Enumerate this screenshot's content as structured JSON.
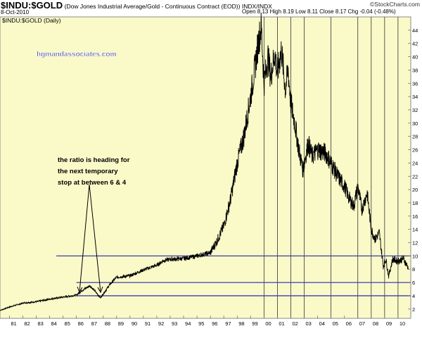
{
  "header": {
    "symbol": "$INDU:$GOLD",
    "description": "(Dow Jones Industrial Average/Gold - Continuous Contract (EOD))",
    "exchange": "INDX/INDX",
    "source": "©StockCharts.com",
    "date": "8-Oct-2010",
    "ohlc": "Open 8.13  High 8.19  Low 8.11  Close 8.17  Chg -0.04 (-0.48%)"
  },
  "chart_data": {
    "type": "line",
    "title": "$INDU:$GOLD (Daily)",
    "site_label": "hgmandassociates.com",
    "annotation": [
      "the ratio is heading for",
      "the next temporary",
      "stop at between 6 & 4"
    ],
    "xlabel": "",
    "ylabel": "",
    "xlim": [
      1980.3,
      2010.95
    ],
    "ylim": [
      0.6,
      46
    ],
    "yscale": "linear",
    "grid": false,
    "x_ticks": [
      "81",
      "82",
      "83",
      "84",
      "85",
      "86",
      "87",
      "88",
      "89",
      "90",
      "91",
      "92",
      "93",
      "94",
      "95",
      "96",
      "97",
      "98",
      "99",
      "00",
      "01",
      "02",
      "03",
      "04",
      "05",
      "06",
      "07",
      "08",
      "09",
      "10"
    ],
    "y_ticks": [
      2,
      4,
      6,
      8,
      10,
      12,
      14,
      16,
      18,
      20,
      22,
      24,
      26,
      28,
      30,
      32,
      34,
      36,
      38,
      40,
      42,
      44
    ],
    "series": [
      {
        "x": [
          1980.3,
          1981,
          1982,
          1983,
          1984,
          1985,
          1986,
          1986.5,
          1987,
          1987.3,
          1987.8,
          1988.5,
          1989,
          1990,
          1991,
          1992,
          1992.5,
          1993,
          1994,
          1995,
          1996,
          1996.5,
          1997,
          1997.5,
          1998,
          1998.5,
          1999,
          1999.3,
          1999.6,
          1999.8,
          2000,
          2000.3,
          2000.5,
          2000.8,
          2001,
          2001.3,
          2001.6,
          2001.8,
          2002,
          2002.3,
          2002.6,
          2002.9,
          2003.3,
          2003.6,
          2004,
          2004.6,
          2005,
          2005.5,
          2006,
          2006.4,
          2006.7,
          2007,
          2007.3,
          2007.7,
          2008,
          2008.3,
          2008.6,
          2008.9,
          2009.1,
          2009.3,
          2009.6,
          2010,
          2010.4,
          2010.77
        ],
        "y": [
          1.8,
          2.3,
          2.9,
          3.1,
          3.5,
          3.8,
          4.1,
          4.9,
          5.5,
          4.9,
          3.7,
          5.7,
          6.8,
          7.0,
          7.9,
          8.6,
          9.3,
          9.5,
          9.6,
          10.0,
          10.5,
          12.3,
          14.5,
          18.5,
          24.0,
          28.0,
          34.0,
          38.0,
          42.5,
          44.5,
          36.0,
          40.0,
          37.0,
          40.5,
          37.5,
          41.0,
          35.0,
          38.0,
          33.0,
          30.0,
          26.0,
          23.0,
          27.0,
          25.0,
          26.0,
          25.5,
          24.0,
          22.0,
          20.5,
          18.5,
          17.5,
          20.5,
          17.0,
          19.5,
          14.0,
          12.5,
          13.5,
          8.5,
          9.5,
          7.0,
          9.5,
          9.2,
          9.6,
          8.17
        ]
      }
    ],
    "horizontal_lines": [
      10,
      6,
      4
    ],
    "vertical_lines": [
      2000,
      2001,
      2002,
      2003,
      2005,
      2007,
      2008,
      2009,
      2010
    ]
  }
}
